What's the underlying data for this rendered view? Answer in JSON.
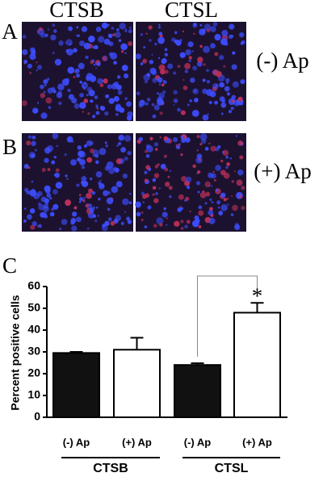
{
  "panels": {
    "column_labels": [
      "CTSB",
      "CTSL"
    ],
    "rows": [
      {
        "label": "A",
        "condition": "(-) Ap"
      },
      {
        "label": "B",
        "condition": "(+) Ap"
      }
    ]
  },
  "chart_data": {
    "type": "bar",
    "panel_label": "C",
    "y_label": "Percent positive cells",
    "categories": [
      "(-) Ap",
      "(+) Ap",
      "(-) Ap",
      "(+) Ap"
    ],
    "groups": [
      "CTSB",
      "CTSL"
    ],
    "values": [
      29.5,
      31,
      24,
      48
    ],
    "errors": [
      0.5,
      5.5,
      0.8,
      4.5
    ],
    "bar_colors": [
      "#111111",
      "#ffffff",
      "#111111",
      "#ffffff"
    ],
    "annotation": "*",
    "ylim": [
      0,
      60
    ],
    "yticks": [
      0,
      10,
      20,
      30,
      40,
      50,
      60
    ]
  }
}
